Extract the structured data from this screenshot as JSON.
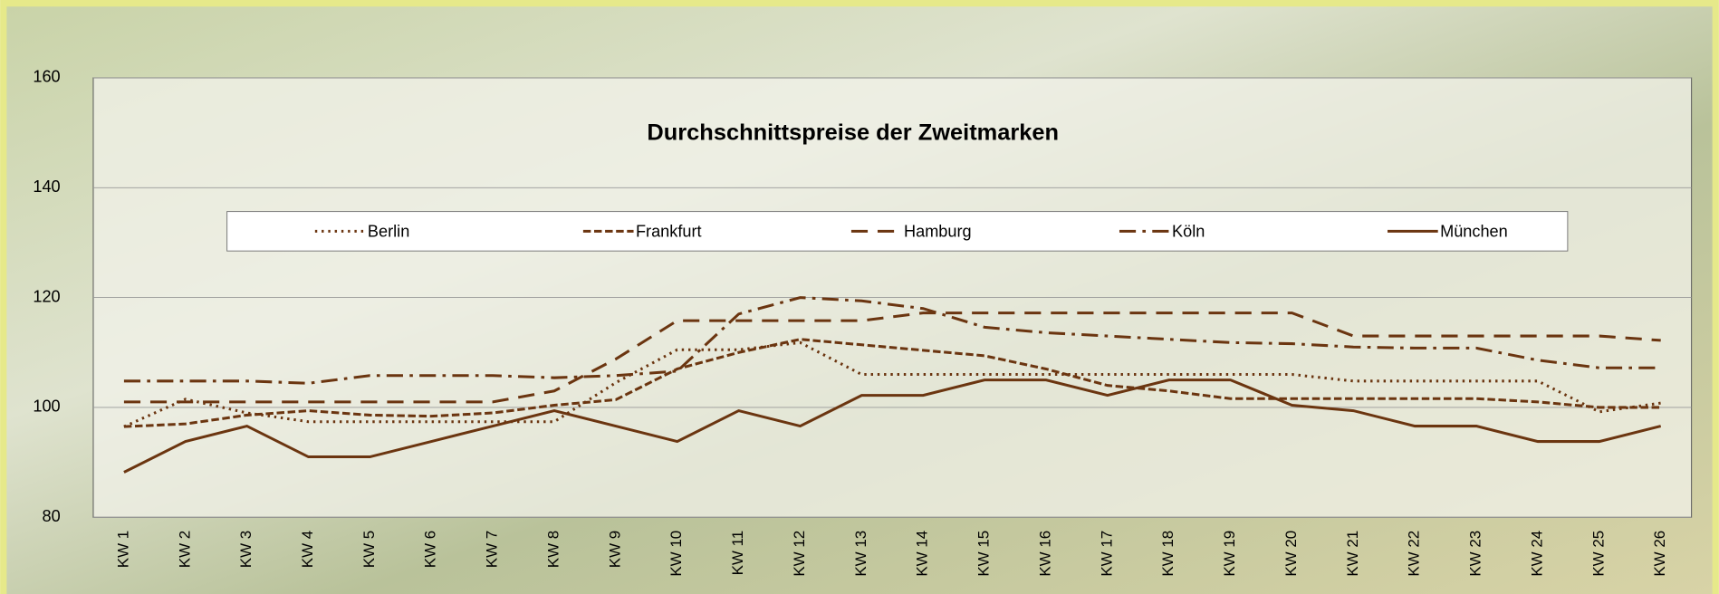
{
  "chart_data": {
    "type": "line",
    "title": "Durchschnittspreise der Zweitmarken",
    "categories": [
      "KW 1",
      "KW 2",
      "KW 3",
      "KW 4",
      "KW 5",
      "KW 6",
      "KW 7",
      "KW 8",
      "KW 9",
      "KW 10",
      "KW 11",
      "KW 12",
      "KW 13",
      "KW 14",
      "KW 15",
      "KW 16",
      "KW 17",
      "KW 18",
      "KW 19",
      "KW 20",
      "KW 21",
      "KW 22",
      "KW 23",
      "KW 24",
      "KW 25",
      "KW 26"
    ],
    "series": [
      {
        "name": "Berlin",
        "color": "#6b3510",
        "line_style": "dotted",
        "values": [
          96.5,
          101.5,
          99,
          97.4,
          97.4,
          97.4,
          97.4,
          97.4,
          104.5,
          110.5,
          110.5,
          111.8,
          106,
          106,
          106,
          106,
          106,
          106,
          106,
          106,
          104.8,
          104.8,
          104.8,
          104.8,
          99.2,
          100.8
        ]
      },
      {
        "name": "Frankfurt",
        "color": "#6b3510",
        "line_style": "short-dash",
        "values": [
          96.5,
          97,
          98.6,
          99.4,
          98.6,
          98.4,
          99,
          100.4,
          101.4,
          107,
          110,
          112.4,
          111.4,
          110.4,
          109.4,
          107,
          104,
          103,
          101.6,
          101.6,
          101.6,
          101.6,
          101.6,
          101,
          100,
          100
        ]
      },
      {
        "name": "Hamburg",
        "color": "#6b3510",
        "line_style": "long-dash",
        "values": [
          101,
          101,
          101,
          101,
          101,
          101,
          101,
          103,
          108.8,
          115.8,
          115.8,
          115.8,
          115.8,
          117.2,
          117.2,
          117.2,
          117.2,
          117.2,
          117.2,
          117.2,
          113,
          113,
          113,
          113,
          113,
          112.2
        ]
      },
      {
        "name": "Köln",
        "color": "#6b3510",
        "line_style": "dash-dot",
        "values": [
          104.8,
          104.8,
          104.8,
          104.4,
          105.8,
          105.8,
          105.8,
          105.4,
          105.8,
          106.6,
          117,
          120,
          119.4,
          118,
          114.6,
          113.6,
          113,
          112.4,
          111.8,
          111.6,
          111,
          110.8,
          110.8,
          108.6,
          107.2,
          107.2
        ]
      },
      {
        "name": "München",
        "color": "#6b3510",
        "line_style": "solid",
        "values": [
          88.2,
          93.8,
          96.6,
          91,
          91,
          93.8,
          96.6,
          99.4,
          96.6,
          93.8,
          99.4,
          96.6,
          102.2,
          102.2,
          105,
          105,
          102.2,
          105,
          105,
          100.4,
          99.4,
          96.6,
          96.6,
          93.8,
          93.8,
          96.6
        ]
      }
    ],
    "ylim": [
      80,
      160
    ],
    "yticks": [
      80,
      100,
      120,
      140,
      160
    ],
    "grid": true,
    "legend": "top"
  }
}
